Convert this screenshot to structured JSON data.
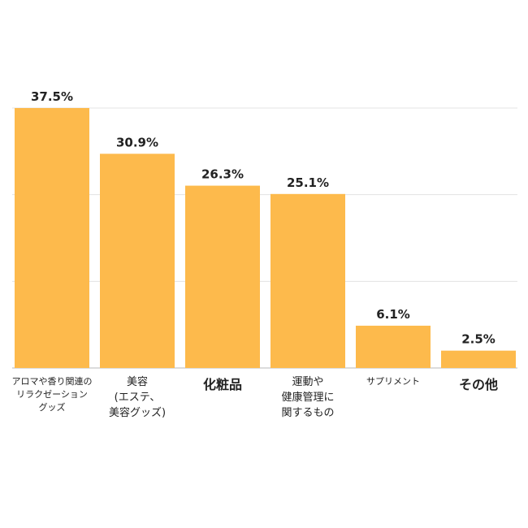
{
  "chart_data": {
    "type": "bar",
    "categories": [
      "アロマや香り関連の\nリラクゼーション\nグッズ",
      "美容\n(エステ、\n美容グッズ)",
      "化粧品",
      "運動や\n健康管理に\n関するもの",
      "サプリメント",
      "その他"
    ],
    "values": [
      37.5,
      30.9,
      26.3,
      25.1,
      6.1,
      2.5
    ],
    "value_labels": [
      "37.5%",
      "30.9%",
      "26.3%",
      "25.1%",
      "6.1%",
      "2.5%"
    ],
    "ylim": [
      0,
      37.5
    ],
    "gridlines": [
      0,
      12.5,
      25,
      37.5
    ],
    "grid": true,
    "legend": "none",
    "bar_color": "#fdba4c",
    "grid_color": "#e3e3e3",
    "axis_color": "#d0d0d0",
    "label_color": "#222222"
  }
}
